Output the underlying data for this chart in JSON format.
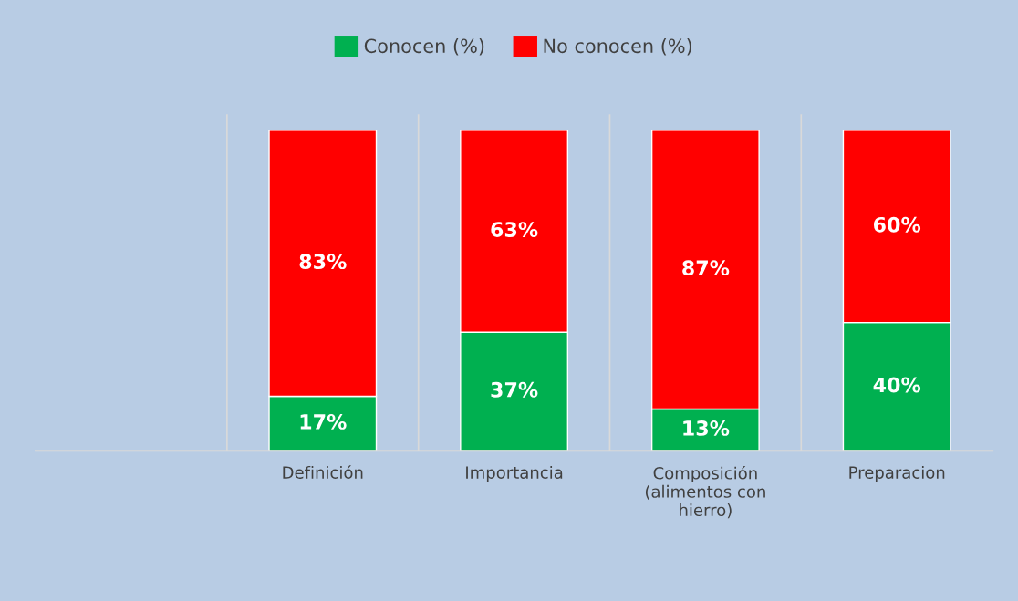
{
  "chart_data": {
    "type": "bar",
    "stacked": true,
    "categories": [
      null,
      "Definición",
      "Importancia",
      "Composición\n(alimentos con\nhierro)",
      "Preparacion"
    ],
    "series": [
      {
        "name": "Conocen (%)",
        "color": "#00b050",
        "values": [
          null,
          17,
          37,
          13,
          40
        ],
        "value_labels": [
          null,
          "17%",
          "37%",
          "13%",
          "40%"
        ]
      },
      {
        "name": "No conocen (%)",
        "color": "#ff0000",
        "values": [
          null,
          83,
          63,
          87,
          60
        ],
        "value_labels": [
          null,
          "83%",
          "63%",
          "87%",
          "60%"
        ]
      }
    ],
    "legend": "top",
    "grid": "x"
  }
}
